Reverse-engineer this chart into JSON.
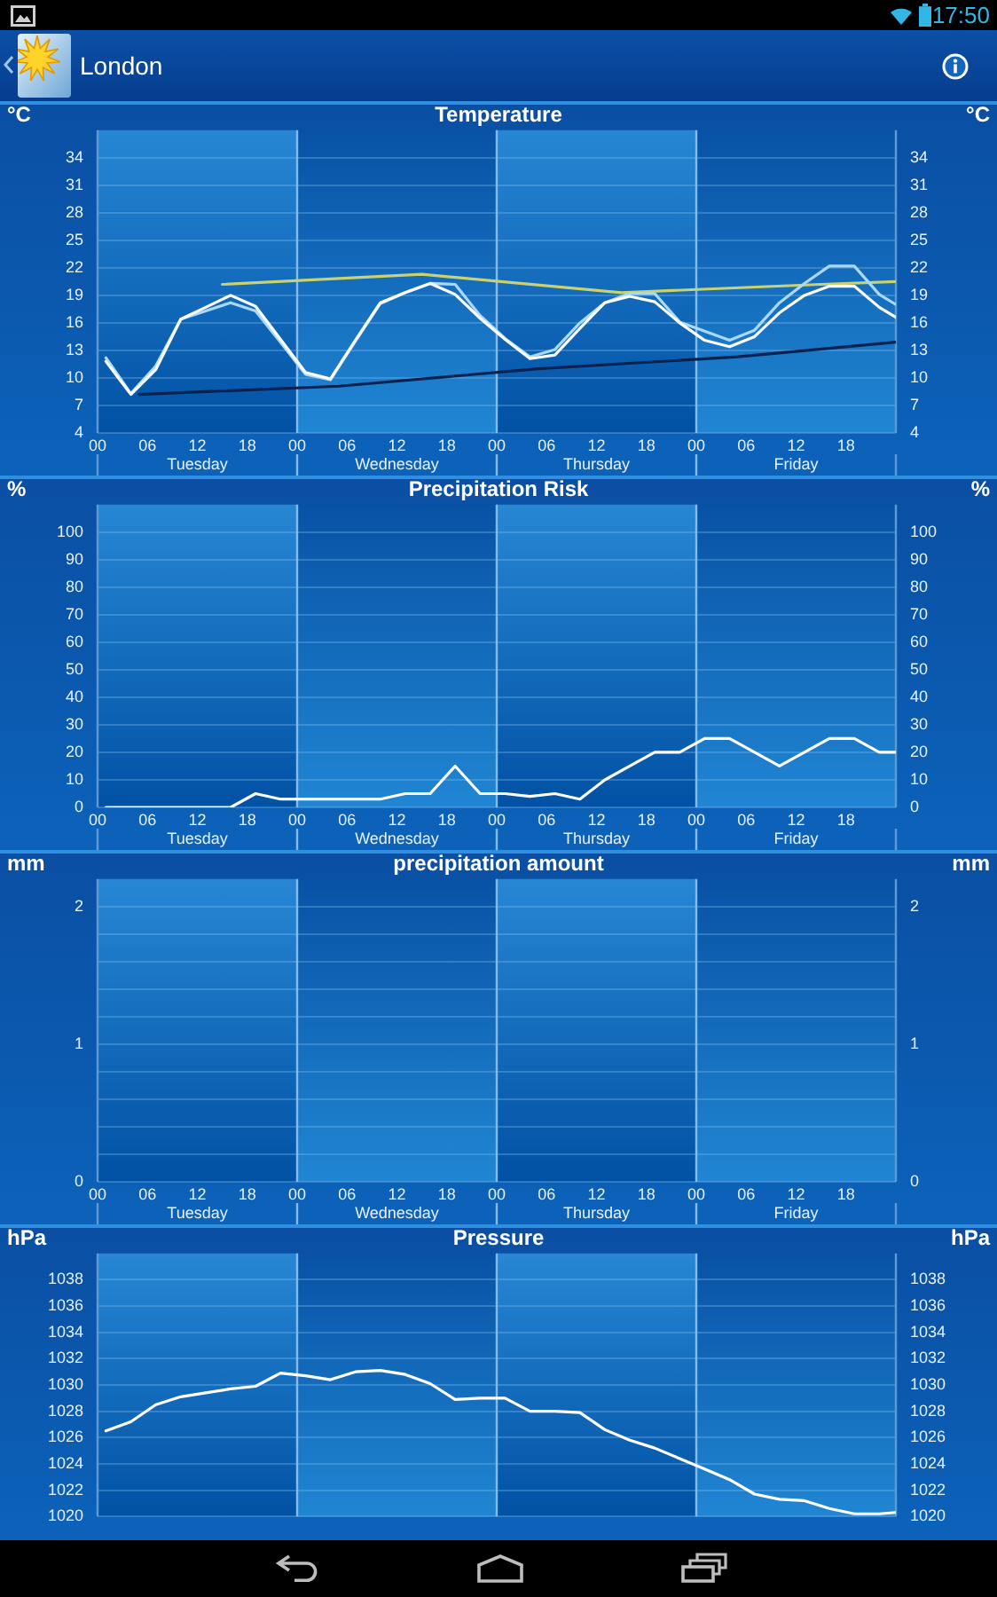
{
  "chart_data": [
    {
      "type": "other",
      "title": "London",
      "annotations": [
        "17:50"
      ]
    },
    {
      "type": "line",
      "title": "Temperature",
      "ylabel": "°C",
      "y2label": "°C",
      "xlim": [
        0,
        96
      ],
      "xticks": [
        {
          "value": 0,
          "label": "00"
        },
        {
          "value": 6,
          "label": "06"
        },
        {
          "value": 12,
          "label": "12"
        },
        {
          "value": 18,
          "label": "18"
        },
        {
          "value": 24,
          "label": "00"
        },
        {
          "value": 30,
          "label": "06"
        },
        {
          "value": 36,
          "label": "12"
        },
        {
          "value": 42,
          "label": "18"
        },
        {
          "value": 48,
          "label": "00"
        },
        {
          "value": 54,
          "label": "06"
        },
        {
          "value": 60,
          "label": "12"
        },
        {
          "value": 66,
          "label": "18"
        },
        {
          "value": 72,
          "label": "00"
        },
        {
          "value": 78,
          "label": "06"
        },
        {
          "value": 84,
          "label": "12"
        },
        {
          "value": 90,
          "label": "18"
        }
      ],
      "ylim": [
        4,
        37
      ],
      "yticks": [
        4,
        7,
        10,
        13,
        16,
        19,
        22,
        25,
        28,
        31,
        34
      ],
      "y2lim": [
        4,
        37
      ],
      "y2ticks": [
        4,
        7,
        10,
        13,
        16,
        19,
        22,
        25,
        28,
        31,
        34
      ],
      "grid": "y",
      "bands": [
        {
          "axis": "x",
          "from": 0,
          "to": 24,
          "label": "Tuesday",
          "color": "#2787d4"
        },
        {
          "axis": "x",
          "from": 24,
          "to": 48,
          "label": "Wednesday",
          "color": "#0852a5"
        },
        {
          "axis": "x",
          "from": 48,
          "to": 72,
          "label": "Thursday",
          "color": "#2787d4"
        },
        {
          "axis": "x",
          "from": 72,
          "to": 96,
          "label": "Friday",
          "color": "#0852a5"
        }
      ],
      "ref_lines": [
        {
          "axis": "x",
          "value": 24,
          "color": "#84bbe8"
        },
        {
          "axis": "x",
          "value": 48,
          "color": "#84bbe8"
        },
        {
          "axis": "x",
          "value": 72,
          "color": "#84bbe8"
        }
      ],
      "series": [
        {
          "color": "#ffffff",
          "x": [
            1,
            4,
            7,
            10,
            13,
            16,
            19,
            22,
            25,
            28,
            31,
            34,
            37,
            40,
            43,
            46,
            49,
            52,
            55,
            58,
            61,
            64,
            67,
            70,
            73,
            76,
            79,
            82,
            85,
            88,
            91,
            94,
            96
          ],
          "values": [
            11.8,
            8.2,
            10.9,
            16.4,
            17.7,
            19.0,
            17.8,
            14.2,
            10.6,
            9.9,
            14.1,
            18.2,
            19.3,
            20.3,
            19.1,
            16.5,
            14.2,
            12.1,
            12.5,
            15.4,
            18.2,
            18.9,
            18.3,
            16.0,
            14.1,
            13.4,
            14.5,
            17.1,
            19.0,
            20.0,
            20.0,
            17.7,
            16.6
          ]
        },
        {
          "color": "#a9d9fa",
          "x": [
            1,
            4,
            7,
            10,
            13,
            16,
            19,
            22,
            25,
            28,
            31,
            34,
            37,
            40,
            43,
            46,
            49,
            52,
            55,
            58,
            61,
            64,
            67,
            70,
            73,
            76,
            79,
            82,
            85,
            88,
            91,
            94,
            96
          ],
          "values": [
            12.2,
            8.3,
            11.3,
            16.4,
            17.3,
            18.2,
            17.3,
            13.9,
            10.4,
            9.8,
            14.0,
            18.1,
            19.3,
            20.3,
            20.2,
            16.8,
            14.3,
            12.3,
            13.1,
            16.0,
            18.2,
            19.2,
            19.2,
            16.1,
            15.1,
            14.1,
            15.2,
            18.2,
            20.3,
            22.2,
            22.2,
            19.1,
            18.0
          ]
        },
        {
          "color": "#c9d26f",
          "x": [
            15,
            39,
            63,
            87,
            96
          ],
          "values": [
            20.2,
            21.3,
            19.3,
            20.2,
            20.5
          ]
        },
        {
          "color": "#0b2150",
          "x": [
            5,
            29,
            53,
            77,
            96
          ],
          "values": [
            8.2,
            9.1,
            11.0,
            12.3,
            13.9
          ]
        }
      ]
    },
    {
      "type": "line",
      "title": "Precipitation Risk",
      "ylabel": "%",
      "y2label": "%",
      "xlim": [
        0,
        96
      ],
      "xticks": [
        {
          "value": 0,
          "label": "00"
        },
        {
          "value": 6,
          "label": "06"
        },
        {
          "value": 12,
          "label": "12"
        },
        {
          "value": 18,
          "label": "18"
        },
        {
          "value": 24,
          "label": "00"
        },
        {
          "value": 30,
          "label": "06"
        },
        {
          "value": 36,
          "label": "12"
        },
        {
          "value": 42,
          "label": "18"
        },
        {
          "value": 48,
          "label": "00"
        },
        {
          "value": 54,
          "label": "06"
        },
        {
          "value": 60,
          "label": "12"
        },
        {
          "value": 66,
          "label": "18"
        },
        {
          "value": 72,
          "label": "00"
        },
        {
          "value": 78,
          "label": "06"
        },
        {
          "value": 84,
          "label": "12"
        },
        {
          "value": 90,
          "label": "18"
        }
      ],
      "ylim": [
        0,
        110
      ],
      "yticks": [
        0,
        10,
        20,
        30,
        40,
        50,
        60,
        70,
        80,
        90,
        100
      ],
      "y2lim": [
        0,
        110
      ],
      "y2ticks": [
        0,
        10,
        20,
        30,
        40,
        50,
        60,
        70,
        80,
        90,
        100
      ],
      "grid": "y",
      "bands": [
        {
          "axis": "x",
          "from": 0,
          "to": 24,
          "label": "Tuesday",
          "color": "#2787d4"
        },
        {
          "axis": "x",
          "from": 24,
          "to": 48,
          "label": "Wednesday",
          "color": "#0852a5"
        },
        {
          "axis": "x",
          "from": 48,
          "to": 72,
          "label": "Thursday",
          "color": "#2787d4"
        },
        {
          "axis": "x",
          "from": 72,
          "to": 96,
          "label": "Friday",
          "color": "#0852a5"
        }
      ],
      "ref_lines": [
        {
          "axis": "x",
          "value": 24,
          "color": "#84bbe8"
        },
        {
          "axis": "x",
          "value": 48,
          "color": "#84bbe8"
        },
        {
          "axis": "x",
          "value": 72,
          "color": "#84bbe8"
        }
      ],
      "color": "#ffffff",
      "x": [
        1,
        4,
        7,
        10,
        13,
        16,
        19,
        22,
        25,
        28,
        31,
        34,
        37,
        40,
        43,
        46,
        49,
        52,
        55,
        58,
        61,
        64,
        67,
        70,
        73,
        76,
        79,
        82,
        85,
        88,
        91,
        94,
        96
      ],
      "values": [
        0,
        0,
        0,
        0,
        0,
        0,
        5,
        3,
        3,
        3,
        3,
        3,
        5,
        5,
        15,
        5,
        5,
        4,
        5,
        3,
        10,
        15,
        20,
        20,
        25,
        25,
        20,
        15,
        20,
        25,
        25,
        20,
        20
      ]
    },
    {
      "type": "line",
      "title": "precipitation amount",
      "ylabel": "mm",
      "y2label": "mm",
      "xlim": [
        0,
        96
      ],
      "xticks": [
        {
          "value": 0,
          "label": "00"
        },
        {
          "value": 6,
          "label": "06"
        },
        {
          "value": 12,
          "label": "12"
        },
        {
          "value": 18,
          "label": "18"
        },
        {
          "value": 24,
          "label": "00"
        },
        {
          "value": 30,
          "label": "06"
        },
        {
          "value": 36,
          "label": "12"
        },
        {
          "value": 42,
          "label": "18"
        },
        {
          "value": 48,
          "label": "00"
        },
        {
          "value": 54,
          "label": "06"
        },
        {
          "value": 60,
          "label": "12"
        },
        {
          "value": 66,
          "label": "18"
        },
        {
          "value": 72,
          "label": "00"
        },
        {
          "value": 78,
          "label": "06"
        },
        {
          "value": 84,
          "label": "12"
        },
        {
          "value": 90,
          "label": "18"
        }
      ],
      "ylim": [
        0,
        2.2
      ],
      "yticks": [
        0,
        {
          "value": 0.2,
          "label": null
        },
        {
          "value": 0.4,
          "label": null
        },
        {
          "value": 0.6,
          "label": null
        },
        {
          "value": 0.8,
          "label": null
        },
        1,
        {
          "value": 1.2,
          "label": null
        },
        {
          "value": 1.4,
          "label": null
        },
        {
          "value": 1.6,
          "label": null
        },
        {
          "value": 1.8,
          "label": null
        },
        2
      ],
      "y2lim": [
        0,
        2.2
      ],
      "y2ticks": [
        0,
        1,
        2
      ],
      "grid": "y",
      "bands": [
        {
          "axis": "x",
          "from": 0,
          "to": 24,
          "label": "Tuesday",
          "color": "#2787d4"
        },
        {
          "axis": "x",
          "from": 24,
          "to": 48,
          "label": "Wednesday",
          "color": "#0852a5"
        },
        {
          "axis": "x",
          "from": 48,
          "to": 72,
          "label": "Thursday",
          "color": "#2787d4"
        },
        {
          "axis": "x",
          "from": 72,
          "to": 96,
          "label": "Friday",
          "color": "#0852a5"
        }
      ],
      "ref_lines": [
        {
          "axis": "x",
          "value": 24,
          "color": "#84bbe8"
        },
        {
          "axis": "x",
          "value": 48,
          "color": "#84bbe8"
        },
        {
          "axis": "x",
          "value": 72,
          "color": "#84bbe8"
        }
      ]
    },
    {
      "type": "line",
      "title": "Pressure",
      "ylabel": "hPa",
      "y2label": "hPa",
      "tick_labels": "y",
      "xlim": [
        0,
        96
      ],
      "ylim": [
        1020,
        1040
      ],
      "yticks": [
        1020,
        1022,
        1024,
        1026,
        1028,
        1030,
        1032,
        1034,
        1036,
        1038
      ],
      "y2lim": [
        1020,
        1040
      ],
      "y2ticks": [
        1020,
        1022,
        1024,
        1026,
        1028,
        1030,
        1032,
        1034,
        1036,
        1038
      ],
      "grid": "y",
      "bands": [
        {
          "axis": "x",
          "from": 0,
          "to": 24,
          "color": "#2787d4"
        },
        {
          "axis": "x",
          "from": 24,
          "to": 48,
          "color": "#0852a5"
        },
        {
          "axis": "x",
          "from": 48,
          "to": 72,
          "color": "#2787d4"
        },
        {
          "axis": "x",
          "from": 72,
          "to": 96,
          "color": "#0852a5"
        }
      ],
      "ref_lines": [
        {
          "axis": "x",
          "value": 24,
          "color": "#84bbe8"
        },
        {
          "axis": "x",
          "value": 48,
          "color": "#84bbe8"
        },
        {
          "axis": "x",
          "value": 72,
          "color": "#84bbe8"
        }
      ],
      "color": "#ffffff",
      "x": [
        1,
        4,
        7,
        10,
        13,
        16,
        19,
        22,
        25,
        28,
        31,
        34,
        37,
        40,
        43,
        46,
        49,
        52,
        55,
        58,
        61,
        64,
        67,
        70,
        73,
        76,
        79,
        82,
        85,
        88,
        91,
        94,
        96
      ],
      "values": [
        1026.5,
        1027.2,
        1028.5,
        1029.1,
        1029.4,
        1029.7,
        1029.9,
        1030.9,
        1030.7,
        1030.4,
        1031.0,
        1031.1,
        1030.8,
        1030.1,
        1028.9,
        1029.0,
        1029.0,
        1028.0,
        1028.0,
        1027.9,
        1026.6,
        1025.8,
        1025.2,
        1024.4,
        1023.6,
        1022.8,
        1021.7,
        1021.3,
        1021.2,
        1020.6,
        1020.2,
        1020.2,
        1020.3
      ]
    }
  ]
}
